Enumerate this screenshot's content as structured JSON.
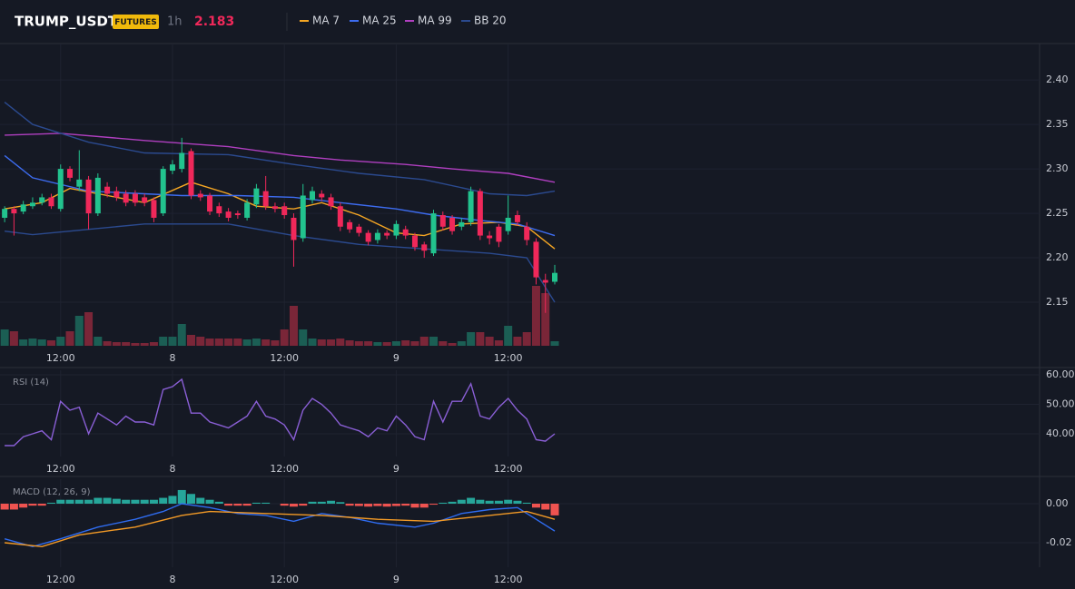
{
  "header": {
    "symbol": "TRUMP_USDT",
    "badge": "FUTURES",
    "interval": "1h",
    "price": 2.183
  },
  "chart_data": [
    {
      "type": "candlestick",
      "up_color": "#22c38e",
      "down_color": "#f0285a",
      "volume_up_color": "#1b5e54",
      "volume_down_color": "#7a2638",
      "open": [
        2.245,
        2.255,
        2.252,
        2.258,
        2.262,
        2.268,
        2.255,
        2.3,
        2.28,
        2.288,
        2.25,
        2.28,
        2.275,
        2.272,
        2.272,
        2.268,
        2.265,
        2.25,
        2.298,
        2.3,
        2.32,
        2.272,
        2.27,
        2.258,
        2.252,
        2.25,
        2.245,
        2.26,
        2.275,
        2.258,
        2.258,
        2.245,
        2.222,
        2.265,
        2.272,
        2.268,
        2.258,
        2.24,
        2.235,
        2.228,
        2.22,
        2.228,
        2.225,
        2.232,
        2.225,
        2.215,
        2.205,
        2.248,
        2.245,
        2.235,
        2.24,
        2.275,
        2.225,
        2.235,
        2.23,
        2.248,
        2.235,
        2.218,
        2.175,
        2.173
      ],
      "high": [
        2.258,
        2.258,
        2.264,
        2.268,
        2.272,
        2.272,
        2.305,
        2.303,
        2.321,
        2.292,
        2.295,
        2.285,
        2.28,
        2.276,
        2.276,
        2.272,
        2.268,
        2.303,
        2.31,
        2.335,
        2.323,
        2.276,
        2.273,
        2.262,
        2.256,
        2.253,
        2.266,
        2.283,
        2.292,
        2.262,
        2.262,
        2.25,
        2.283,
        2.28,
        2.276,
        2.272,
        2.262,
        2.243,
        2.238,
        2.231,
        2.232,
        2.231,
        2.242,
        2.236,
        2.228,
        2.218,
        2.254,
        2.252,
        2.248,
        2.245,
        2.28,
        2.278,
        2.23,
        2.238,
        2.27,
        2.253,
        2.24,
        2.222,
        2.182,
        2.192
      ],
      "low": [
        2.24,
        2.225,
        2.249,
        2.255,
        2.259,
        2.255,
        2.252,
        2.286,
        2.275,
        2.232,
        2.247,
        2.268,
        2.264,
        2.258,
        2.258,
        2.258,
        2.24,
        2.247,
        2.294,
        2.296,
        2.266,
        2.264,
        2.248,
        2.246,
        2.241,
        2.244,
        2.242,
        2.256,
        2.254,
        2.251,
        2.244,
        2.19,
        2.218,
        2.261,
        2.264,
        2.254,
        2.23,
        2.228,
        2.224,
        2.214,
        2.216,
        2.221,
        2.221,
        2.221,
        2.208,
        2.2,
        2.202,
        2.231,
        2.226,
        2.231,
        2.236,
        2.22,
        2.215,
        2.212,
        2.226,
        2.236,
        2.214,
        2.17,
        2.138,
        2.17
      ],
      "close": [
        2.255,
        2.25,
        2.26,
        2.262,
        2.268,
        2.258,
        2.3,
        2.29,
        2.288,
        2.25,
        2.29,
        2.272,
        2.268,
        2.262,
        2.262,
        2.262,
        2.245,
        2.3,
        2.305,
        2.318,
        2.27,
        2.268,
        2.252,
        2.25,
        2.245,
        2.248,
        2.262,
        2.278,
        2.258,
        2.255,
        2.248,
        2.22,
        2.27,
        2.275,
        2.268,
        2.258,
        2.235,
        2.232,
        2.228,
        2.218,
        2.228,
        2.225,
        2.238,
        2.225,
        2.212,
        2.208,
        2.25,
        2.235,
        2.23,
        2.24,
        2.275,
        2.225,
        2.222,
        2.218,
        2.245,
        2.24,
        2.22,
        2.178,
        2.172,
        2.183
      ],
      "volume": [
        18,
        16,
        7,
        8,
        7,
        6,
        10,
        16,
        33,
        37,
        10,
        5,
        4,
        4,
        3,
        3,
        4,
        10,
        10,
        24,
        12,
        10,
        8,
        8,
        8,
        8,
        7,
        8,
        7,
        6,
        18,
        44,
        18,
        8,
        7,
        7,
        8,
        6,
        5,
        5,
        4,
        4,
        5,
        6,
        5,
        10,
        10,
        5,
        3,
        5,
        15,
        15,
        10,
        6,
        22,
        10,
        15,
        66,
        58,
        5
      ],
      "series": [
        {
          "name": "MA 7",
          "color": "#f5a623",
          "x": [
            0,
            4,
            7,
            12,
            15,
            20,
            24,
            27,
            31,
            34,
            38,
            42,
            45,
            49,
            53,
            56,
            59
          ],
          "values": [
            2.255,
            2.262,
            2.278,
            2.268,
            2.262,
            2.285,
            2.272,
            2.258,
            2.255,
            2.262,
            2.248,
            2.228,
            2.225,
            2.238,
            2.24,
            2.235,
            2.21
          ]
        },
        {
          "name": "MA 25",
          "color": "#3d6cf0",
          "x": [
            0,
            3,
            9,
            19,
            25,
            31,
            36,
            42,
            46,
            51,
            55,
            59
          ],
          "values": [
            2.315,
            2.29,
            2.275,
            2.27,
            2.27,
            2.268,
            2.262,
            2.255,
            2.248,
            2.242,
            2.238,
            2.225
          ]
        },
        {
          "name": "MA 99",
          "color": "#b03fc0",
          "x": [
            0,
            6,
            15,
            24,
            31,
            36,
            43,
            48,
            54,
            59
          ],
          "values": [
            2.338,
            2.34,
            2.332,
            2.325,
            2.315,
            2.31,
            2.305,
            2.3,
            2.295,
            2.285
          ]
        },
        {
          "name": "BB 20",
          "color": "#2b4a8f",
          "x": [
            0,
            3,
            9,
            15,
            24,
            31,
            38,
            45,
            52,
            56,
            59
          ],
          "upper": [
            2.375,
            2.35,
            2.33,
            2.318,
            2.316,
            2.305,
            2.295,
            2.288,
            2.272,
            2.27,
            2.275
          ],
          "lower": [
            2.23,
            2.226,
            2.232,
            2.238,
            2.238,
            2.225,
            2.215,
            2.21,
            2.205,
            2.2,
            2.15
          ]
        }
      ],
      "xlim": [
        -0.5,
        111
      ],
      "xticks": [
        {
          "value": 6,
          "label": "12:00"
        },
        {
          "value": 18,
          "label": "8"
        },
        {
          "value": 30,
          "label": "12:00"
        },
        {
          "value": 42,
          "label": "9"
        },
        {
          "value": 54,
          "label": "12:00"
        }
      ],
      "ylim": [
        2.101,
        2.441
      ],
      "yticks": [
        {
          "value": 2.15,
          "label": "2.15"
        },
        {
          "value": 2.2,
          "label": "2.20"
        },
        {
          "value": 2.25,
          "label": "2.25"
        },
        {
          "value": 2.3,
          "label": "2.30"
        },
        {
          "value": 2.35,
          "label": "2.35"
        },
        {
          "value": 2.4,
          "label": "2.40"
        }
      ],
      "grid": true
    },
    {
      "type": "line",
      "title": "RSI (14)",
      "series": [
        {
          "color": "#8a5fd6",
          "values": [
            36,
            36,
            39,
            40,
            41,
            38,
            51,
            48,
            49,
            40,
            47,
            45,
            43,
            46,
            44,
            44,
            43,
            55,
            56,
            58.5,
            47,
            47,
            44,
            43,
            42,
            44,
            46,
            51,
            46,
            45,
            43,
            38,
            48,
            52,
            50,
            47,
            43,
            42,
            41,
            39,
            42,
            41,
            46,
            43,
            39,
            38,
            51,
            44,
            51,
            51,
            57,
            46,
            45,
            49,
            52,
            48,
            45,
            38,
            37.5,
            40
          ]
        }
      ],
      "xlim": [
        -0.5,
        111
      ],
      "xticks": [
        {
          "value": 6,
          "label": "12:00"
        },
        {
          "value": 18,
          "label": "8"
        },
        {
          "value": 30,
          "label": "12:00"
        },
        {
          "value": 42,
          "label": "9"
        },
        {
          "value": 54,
          "label": "12:00"
        }
      ],
      "ylim": [
        32.3,
        61.54
      ],
      "yticks": [
        {
          "value": 40,
          "label": "40.00"
        },
        {
          "value": 50,
          "label": "50.00"
        },
        {
          "value": 60,
          "label": "60.00"
        }
      ],
      "grid": true
    },
    {
      "type": "macd",
      "title": "MACD (12, 26, 9)",
      "up_color": "#26a69a",
      "down_color": "#ef5350",
      "histogram": [
        -0.003,
        -0.003,
        -0.002,
        -0.001,
        -0.001,
        0.0005,
        0.002,
        0.002,
        0.002,
        0.002,
        0.003,
        0.003,
        0.0025,
        0.002,
        0.002,
        0.002,
        0.002,
        0.003,
        0.004,
        0.007,
        0.005,
        0.003,
        0.002,
        0.001,
        -0.001,
        -0.001,
        -0.001,
        0.0005,
        0.0005,
        0,
        -0.001,
        -0.0015,
        -0.001,
        0.001,
        0.001,
        0.0015,
        0.0008,
        -0.001,
        -0.0012,
        -0.0015,
        -0.0012,
        -0.0015,
        -0.0012,
        -0.001,
        -0.002,
        -0.002,
        -0.0005,
        0.0005,
        0.001,
        0.002,
        0.003,
        0.002,
        0.0015,
        0.0015,
        0.002,
        0.0015,
        0.0005,
        -0.002,
        -0.003,
        -0.006
      ],
      "series": [
        {
          "color": "#2f6cf0",
          "x": [
            0,
            3,
            6,
            10,
            14,
            17,
            19,
            22,
            25,
            28,
            31,
            34,
            37,
            40,
            44,
            46,
            49,
            52,
            55,
            57,
            59
          ],
          "values": [
            -0.018,
            -0.022,
            -0.018,
            -0.012,
            -0.008,
            -0.004,
            0,
            -0.002,
            -0.005,
            -0.006,
            -0.009,
            -0.005,
            -0.007,
            -0.01,
            -0.012,
            -0.01,
            -0.005,
            -0.003,
            -0.002,
            -0.008,
            -0.014
          ]
        },
        {
          "color": "#f39a26",
          "x": [
            0,
            4,
            8,
            14,
            19,
            22,
            28,
            34,
            40,
            46,
            52,
            56,
            59
          ],
          "values": [
            -0.02,
            -0.022,
            -0.016,
            -0.012,
            -0.006,
            -0.004,
            -0.005,
            -0.006,
            -0.008,
            -0.009,
            -0.006,
            -0.004,
            -0.008
          ]
        }
      ],
      "xlim": [
        -0.5,
        111
      ],
      "xticks": [
        {
          "value": 6,
          "label": "12:00"
        },
        {
          "value": 18,
          "label": "8"
        },
        {
          "value": 30,
          "label": "12:00"
        },
        {
          "value": 42,
          "label": "9"
        },
        {
          "value": 54,
          "label": "12:00"
        }
      ],
      "ylim": [
        -0.03256,
        0.01256
      ],
      "yticks": [
        {
          "value": -0.02,
          "label": "-0.02"
        },
        {
          "value": 0,
          "label": "0.00"
        }
      ],
      "grid": true
    }
  ]
}
